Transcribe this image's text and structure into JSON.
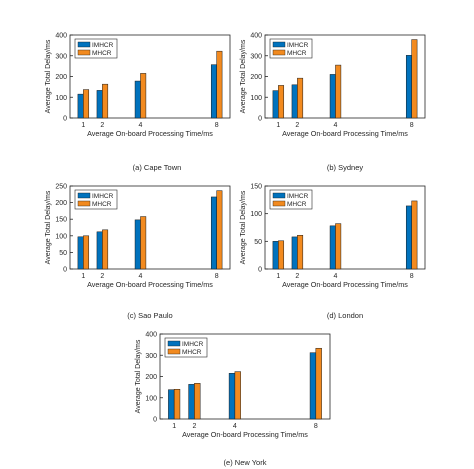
{
  "colors": {
    "imhcr": "#0072BD",
    "mhcr": "#F28A1F",
    "axis": "#262626"
  },
  "chart_data": [
    {
      "type": "bar",
      "caption": "(a) Cape Town",
      "categories": [
        "1",
        "2",
        "4",
        "8"
      ],
      "x": [
        1,
        2,
        4,
        8
      ],
      "xlabel": "Average On-board Processing Time/ms",
      "ylabel": "Average Total Delay/ms",
      "ylim": [
        0,
        400
      ],
      "yticks": [
        "0",
        "100",
        "200",
        "300",
        "400"
      ],
      "legend": "top-left",
      "series": [
        {
          "name": "IMHCR",
          "values": [
            115,
            133,
            178,
            257
          ]
        },
        {
          "name": "MHCR",
          "values": [
            137,
            163,
            215,
            322
          ]
        }
      ]
    },
    {
      "type": "bar",
      "caption": "(b) Sydney",
      "categories": [
        "1",
        "2",
        "4",
        "8"
      ],
      "x": [
        1,
        2,
        4,
        8
      ],
      "xlabel": "Average On-board Processing Time/ms",
      "ylabel": "Average Total Delay/ms",
      "ylim": [
        0,
        400
      ],
      "yticks": [
        "0",
        "100",
        "200",
        "300",
        "400"
      ],
      "legend": "top-left",
      "series": [
        {
          "name": "IMHCR",
          "values": [
            132,
            160,
            210,
            302
          ]
        },
        {
          "name": "MHCR",
          "values": [
            157,
            192,
            255,
            378
          ]
        }
      ]
    },
    {
      "type": "bar",
      "caption": "(c) Sao Paulo",
      "categories": [
        "1",
        "2",
        "4",
        "8"
      ],
      "x": [
        1,
        2,
        4,
        8
      ],
      "xlabel": "Average On-board Processing Time/ms",
      "ylabel": "Average Total Delay/ms",
      "ylim": [
        0,
        250
      ],
      "yticks": [
        "0",
        "50",
        "100",
        "150",
        "200",
        "250"
      ],
      "legend": "top-left",
      "series": [
        {
          "name": "IMHCR",
          "values": [
            97,
            112,
            148,
            217
          ]
        },
        {
          "name": "MHCR",
          "values": [
            100,
            118,
            158,
            236
          ]
        }
      ]
    },
    {
      "type": "bar",
      "caption": "(d) London",
      "categories": [
        "1",
        "2",
        "4",
        "8"
      ],
      "x": [
        1,
        2,
        4,
        8
      ],
      "xlabel": "Average On-board Processing Time/ms",
      "ylabel": "Average Total Delay/ms",
      "ylim": [
        0,
        150
      ],
      "yticks": [
        "0",
        "50",
        "100",
        "150"
      ],
      "legend": "top-left",
      "series": [
        {
          "name": "IMHCR",
          "values": [
            50,
            58,
            78,
            114
          ]
        },
        {
          "name": "MHCR",
          "values": [
            51,
            61,
            82,
            123
          ]
        }
      ]
    },
    {
      "type": "bar",
      "caption": "(e) New York",
      "categories": [
        "1",
        "2",
        "4",
        "8"
      ],
      "x": [
        1,
        2,
        4,
        8
      ],
      "xlabel": "Average On-board Processing Time/ms",
      "ylabel": "Average Total Delay/ms",
      "ylim": [
        0,
        400
      ],
      "yticks": [
        "0",
        "100",
        "200",
        "300",
        "400"
      ],
      "legend": "top-left",
      "series": [
        {
          "name": "IMHCR",
          "values": [
            138,
            163,
            215,
            312
          ]
        },
        {
          "name": "MHCR",
          "values": [
            140,
            168,
            223,
            333
          ]
        }
      ]
    }
  ]
}
